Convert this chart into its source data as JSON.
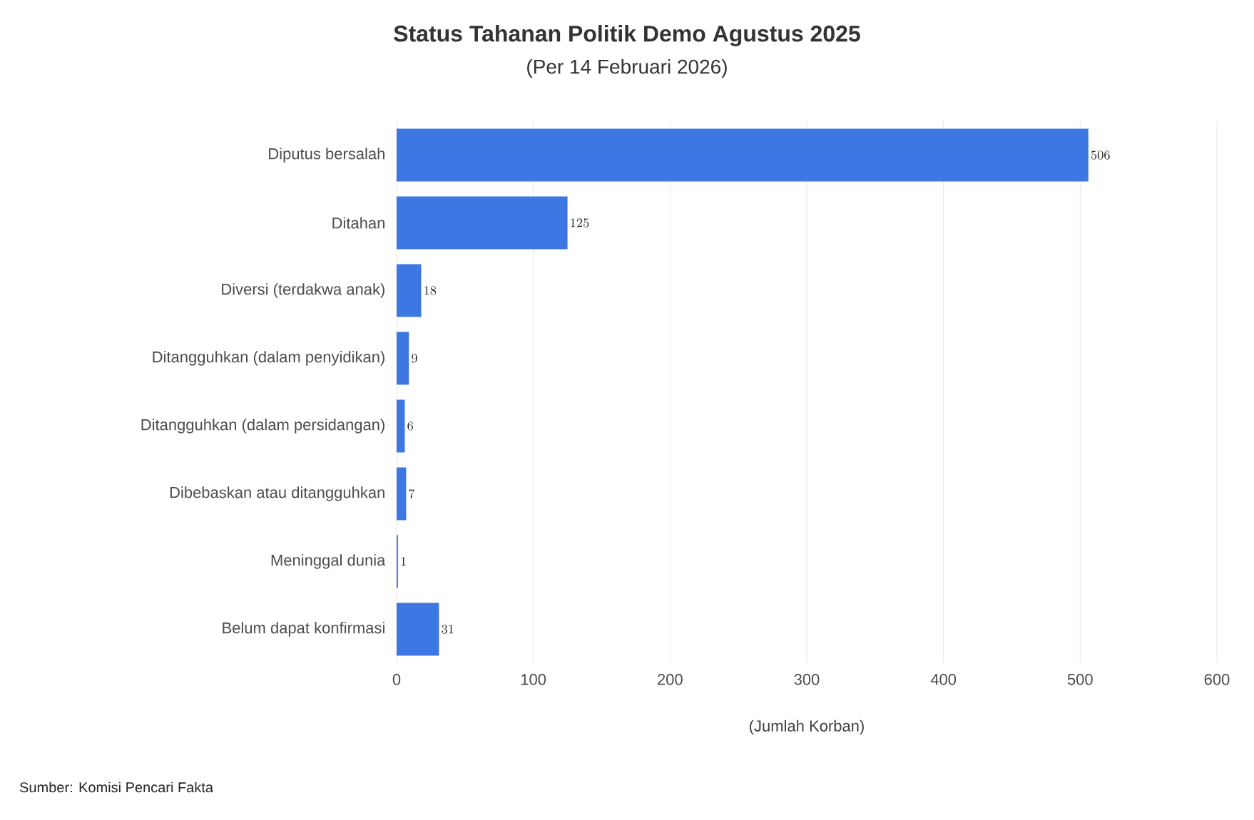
{
  "chart_data": {
    "type": "bar",
    "orientation": "horizontal",
    "title": "Status Tahanan Politik Demo Agustus 2025",
    "subtitle": "(Per 14 Februari 2026)",
    "xlabel": "(Jumlah Korban)",
    "categories": [
      "Diputus bersalah",
      "Ditahan",
      "Diversi (terdakwa anak)",
      "Ditangguhkan (dalam penyidikan)",
      "Ditangguhkan (dalam persidangan)",
      "Dibebaskan atau ditangguhkan",
      "Meninggal dunia",
      "Belum dapat konfirmasi"
    ],
    "values": [
      506,
      125,
      18,
      9,
      6,
      7,
      1,
      31
    ],
    "color": "#3d77e3",
    "xlim": [
      0,
      600
    ],
    "xticks": [
      0,
      100,
      200,
      300,
      400,
      500,
      600
    ],
    "grid": "x",
    "data_labels": true,
    "annotations": [
      "Sumber: Komisi Pencari Fakta"
    ]
  }
}
